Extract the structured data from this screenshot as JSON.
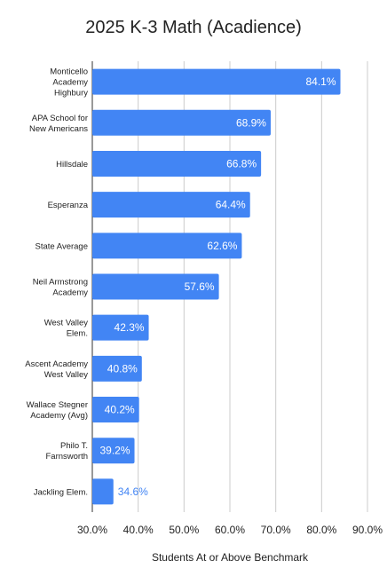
{
  "chart_data": {
    "type": "bar",
    "orientation": "horizontal",
    "title": "2025 K-3 Math (Acadience)",
    "xlabel": "Students At or Above Benchmark",
    "ylabel": "",
    "xlim": [
      30,
      90
    ],
    "ticks": [
      "30.0%",
      "40.0%",
      "50.0%",
      "60.0%",
      "70.0%",
      "80.0%",
      "90.0%"
    ],
    "grid": true,
    "bar_color": "#4285f4",
    "categories": [
      [
        "Monticello",
        "Academy",
        "Highbury"
      ],
      [
        "APA School for",
        "New Americans"
      ],
      [
        "Hillsdale"
      ],
      [
        "Esperanza"
      ],
      [
        "State Average"
      ],
      [
        "Neil Armstrong",
        "Academy"
      ],
      [
        "West Valley",
        "Elem."
      ],
      [
        "Ascent Academy",
        "West Valley"
      ],
      [
        "Wallace Stegner",
        "Academy (Avg)"
      ],
      [
        "Philo T.",
        "Farnsworth"
      ],
      [
        "Jackling Elem."
      ]
    ],
    "values": [
      84.1,
      68.9,
      66.8,
      64.4,
      62.6,
      57.6,
      42.3,
      40.8,
      40.2,
      39.2,
      34.6
    ],
    "value_labels": [
      "84.1%",
      "68.9%",
      "66.8%",
      "64.4%",
      "62.6%",
      "57.6%",
      "42.3%",
      "40.8%",
      "40.2%",
      "39.2%",
      "34.6%"
    ]
  }
}
